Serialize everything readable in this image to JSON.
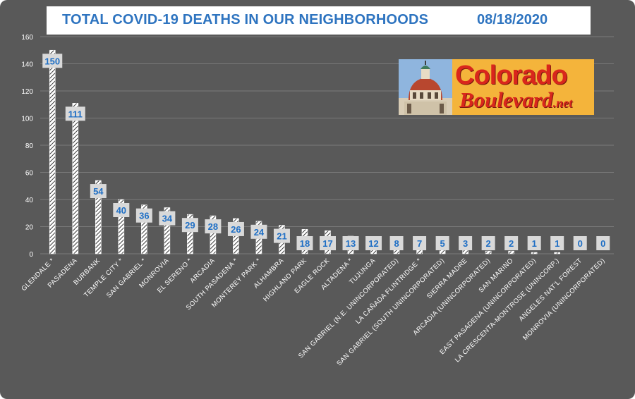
{
  "header": {
    "title": "TOTAL COVID-19 DEATHS IN OUR NEIGHBORHOODS",
    "date": "08/18/2020"
  },
  "logo": {
    "word1": "Colorado",
    "word2": "Boulevard",
    "suffix": ".net"
  },
  "colors": {
    "background": "#595959",
    "title": "#2e74c0",
    "label_box": "#d9d9d9",
    "label_text": "#1f6fc5",
    "axis_text": "#ffffff",
    "logo_bg": "#f4b43b",
    "logo_text": "#d9261c"
  },
  "chart_data": {
    "type": "bar",
    "categories": [
      "GLENDALE *",
      "PASADENA",
      "BURBANK",
      "TEMPLE CITY *",
      "SAN GABRIEL *",
      "MONROVIA",
      "EL SERENO *",
      "ARCADIA",
      "SOUTH PASADENA *",
      "MONTEREY PARK *",
      "ALHAMBRA",
      "HIGHLAND PARK",
      "EAGLE ROCK",
      "ALTADENA *",
      "TUJUNGA",
      "SAN GABRIEL (N.E. UNINCORPORATED)",
      "LA CAÑADA FLINTRIDGE *",
      "SAN GABRIEL (SOUTH UNINCORPORATED)",
      "SIERRA MADRE",
      "ARCADIA (UNINCORPORATED)",
      "SAN MARINO",
      "EAST PASADENA (UNINCORPORATED)",
      "LA CRESCENTA-MONTROSE (UNINCORP.)",
      "ANGELES NAT'L FOREST",
      "MONROVIA (UNINCORPORATED)"
    ],
    "values": [
      150,
      111,
      54,
      40,
      36,
      34,
      29,
      28,
      26,
      24,
      21,
      18,
      17,
      13,
      12,
      8,
      7,
      5,
      3,
      2,
      2,
      1,
      1,
      0,
      0
    ],
    "yticks": [
      0,
      20,
      40,
      60,
      80,
      100,
      120,
      140,
      160
    ],
    "ylim": [
      0,
      160
    ],
    "grid": true,
    "bar_pattern": "diagonal-hatch"
  }
}
